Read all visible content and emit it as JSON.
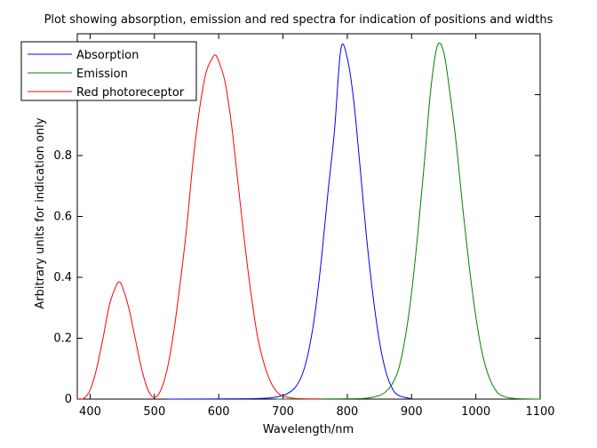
{
  "chart_data": {
    "type": "line",
    "title": "Plot showing absorption, emission and red spectra for indication of positions and widths",
    "xlabel": "Wavelength/nm",
    "ylabel": "Arbitrary units for indication only",
    "xlim": [
      380,
      1100
    ],
    "ylim": [
      0,
      1.2
    ],
    "x_ticks": [
      400,
      500,
      600,
      700,
      800,
      900,
      1000,
      1100
    ],
    "x_tick_labels": [
      "400",
      "500",
      "600",
      "700",
      "800",
      "900",
      "1000",
      "1100"
    ],
    "y_ticks": [
      0,
      0.2,
      0.4,
      0.6,
      0.8,
      1
    ],
    "y_tick_labels": [
      "0",
      "0.2",
      "0.4",
      "0.6",
      "0.8",
      "1"
    ],
    "grid": false,
    "legend_position": "top-left",
    "series": [
      {
        "name": "Absorption",
        "color": "#0000ff",
        "x": [
          520,
          640,
          680,
          700,
          710,
          720,
          730,
          740,
          750,
          760,
          770,
          780,
          790,
          800,
          810,
          820,
          830,
          840,
          850,
          860,
          870,
          880,
          900
        ],
        "y": [
          0,
          0.001,
          0.004,
          0.012,
          0.022,
          0.041,
          0.081,
          0.159,
          0.285,
          0.465,
          0.68,
          0.88,
          1.15,
          1.12,
          0.98,
          0.76,
          0.53,
          0.34,
          0.19,
          0.09,
          0.035,
          0.012,
          0.001
        ]
      },
      {
        "name": "Emission",
        "color": "#008000",
        "x": [
          690,
          800,
          830,
          850,
          860,
          870,
          880,
          890,
          900,
          910,
          920,
          930,
          940,
          950,
          960,
          970,
          980,
          990,
          1000,
          1010,
          1020,
          1030,
          1040,
          1060,
          1100
        ],
        "y": [
          0,
          0.001,
          0.003,
          0.012,
          0.025,
          0.05,
          0.1,
          0.2,
          0.35,
          0.55,
          0.78,
          1.02,
          1.16,
          1.14,
          1.0,
          0.83,
          0.62,
          0.43,
          0.27,
          0.15,
          0.075,
          0.032,
          0.012,
          0.002,
          0
        ]
      },
      {
        "name": "Red photoreceptor",
        "color": "#ff0000",
        "x": [
          380,
          390,
          400,
          410,
          420,
          430,
          440,
          445,
          450,
          460,
          470,
          480,
          490,
          500,
          510,
          520,
          530,
          540,
          550,
          560,
          570,
          580,
          590,
          595,
          600,
          610,
          620,
          630,
          640,
          650,
          660,
          670,
          680,
          690,
          700,
          720,
          760
        ],
        "y": [
          0,
          0.002,
          0.03,
          0.1,
          0.2,
          0.31,
          0.37,
          0.385,
          0.37,
          0.3,
          0.2,
          0.1,
          0.03,
          0.005,
          0.03,
          0.1,
          0.22,
          0.38,
          0.56,
          0.78,
          0.95,
          1.07,
          1.12,
          1.13,
          1.11,
          1.04,
          0.9,
          0.71,
          0.52,
          0.35,
          0.21,
          0.12,
          0.06,
          0.025,
          0.01,
          0.002,
          0
        ]
      }
    ]
  }
}
